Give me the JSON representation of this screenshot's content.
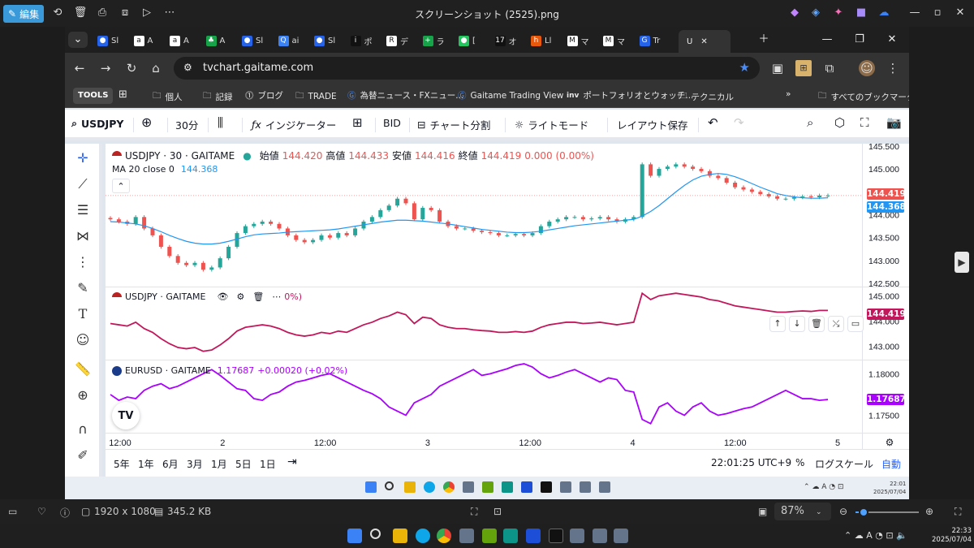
{
  "photos_app": {
    "edit_label": "編集",
    "title": "スクリーンショット (2525).png",
    "status": {
      "dimensions": "1920 x 1080",
      "filesize": "345.2 KB",
      "zoom": "87%"
    },
    "taskbar_clock": {
      "time": "22:33",
      "date": "2025/07/04"
    }
  },
  "browser": {
    "tabs": [
      {
        "label": "Sl",
        "icon": "globe-icon"
      },
      {
        "label": "A",
        "icon": "amazon-icon"
      },
      {
        "label": "A",
        "icon": "amazon-icon"
      },
      {
        "label": "A",
        "icon": "app-icon"
      },
      {
        "label": "Sl",
        "icon": "globe-icon"
      },
      {
        "label": "ai",
        "icon": "search-icon"
      },
      {
        "label": "Sl",
        "icon": "globe-icon"
      },
      {
        "label": "ポ",
        "icon": "investing-icon"
      },
      {
        "label": "デ",
        "icon": "r-icon"
      },
      {
        "label": "ラ",
        "icon": "plus-icon"
      },
      {
        "label": "[",
        "icon": "circle-icon"
      },
      {
        "label": "オ",
        "icon": "tradingview-icon"
      },
      {
        "label": "Ll",
        "icon": "h-icon"
      },
      {
        "label": "マ",
        "icon": "my-icon"
      },
      {
        "label": "マ",
        "icon": "my-icon"
      },
      {
        "label": "Tr",
        "icon": "gaitame-icon"
      }
    ],
    "active_tab_label": "U",
    "url": "tvchart.gaitame.com",
    "bookmarks": {
      "tools": "TOOLS",
      "items": [
        "個人",
        "記録",
        "ブログ",
        "TRADE",
        "為替ニュース・FXニュー...",
        "Gaitame Trading View",
        "ポートフォリオとウォッチ...",
        "テクニカル"
      ],
      "all_bookmarks": "すべてのブックマーク"
    }
  },
  "tv": {
    "symbol": "USDJPY",
    "interval": "30分",
    "indicators": "インジケーター",
    "bid": "BID",
    "split": "チャート分割",
    "light_mode": "ライトモード",
    "save_layout": "レイアウト保存",
    "main_legend": {
      "symbol": "USDJPY · 30 · GAITAME",
      "open_label": "始値",
      "open": "144.420",
      "high_label": "高値",
      "high": "144.433",
      "low_label": "安値",
      "low": "144.416",
      "close_label": "終値",
      "close": "144.419",
      "change": "0.000 (0.00%)"
    },
    "ma_legend": {
      "label": "MA 20 close 0",
      "value": "144.368"
    },
    "pane2_legend": {
      "symbol": "USDJPY · GAITAME",
      "tail": "0%)"
    },
    "pane3_legend": {
      "symbol": "EURUSD · GAITAME",
      "value": "1.17687",
      "change": "+0.00020 (+0.02%)"
    },
    "price_labels": {
      "main_last": "144.419",
      "main_ma": "144.368",
      "pane2_last": "144.419",
      "pane3_last": "1.17687"
    },
    "bottom_ranges": [
      "5年",
      "1年",
      "6月",
      "3月",
      "1月",
      "5日",
      "1日"
    ],
    "bottom_time": "22:01:25 UTC+9",
    "bottom_pct": "%",
    "bottom_log": "ログスケール",
    "bottom_auto": "自動",
    "inner_clock": {
      "time": "22:01",
      "date": "2025/07/04"
    },
    "colors": {
      "up": "#26a69a",
      "down": "#ef5350",
      "ma": "#2196f3",
      "pane2": "#c2185b",
      "pane3": "#aa00ff"
    }
  },
  "chart_data": [
    {
      "type": "candlestick",
      "title": "USDJPY · 30 · GAITAME",
      "x_ticks": [
        "12:00",
        "2",
        "12:00",
        "3",
        "12:00",
        "4",
        "12:00",
        "5"
      ],
      "y_ticks": [
        "145.500",
        "145.000",
        "144.500",
        "144.000",
        "143.500",
        "143.000",
        "142.500"
      ],
      "ylim": [
        142.45,
        145.55
      ],
      "closes": [
        143.9,
        143.85,
        143.8,
        143.95,
        143.7,
        143.55,
        143.3,
        143.1,
        142.95,
        142.9,
        142.95,
        142.8,
        142.85,
        143.05,
        143.3,
        143.6,
        143.75,
        143.8,
        143.85,
        143.8,
        143.7,
        143.55,
        143.45,
        143.4,
        143.45,
        143.55,
        143.5,
        143.6,
        143.55,
        143.7,
        143.85,
        143.95,
        144.1,
        144.2,
        144.35,
        144.25,
        143.9,
        144.15,
        144.1,
        143.85,
        143.75,
        143.7,
        143.7,
        143.65,
        143.62,
        143.6,
        143.55,
        143.55,
        143.58,
        143.55,
        143.6,
        143.75,
        143.85,
        143.9,
        143.95,
        143.95,
        143.9,
        143.92,
        143.95,
        143.9,
        143.85,
        143.9,
        143.95,
        145.1,
        144.85,
        145.0,
        145.05,
        145.1,
        145.05,
        145.0,
        144.95,
        144.85,
        144.8,
        144.7,
        144.6,
        144.55,
        144.5,
        144.45,
        144.4,
        144.35,
        144.35,
        144.38,
        144.4,
        144.38,
        144.42,
        144.42
      ],
      "ma20": [
        143.85,
        143.84,
        143.82,
        143.8,
        143.76,
        143.7,
        143.63,
        143.55,
        143.48,
        143.42,
        143.38,
        143.36,
        143.36,
        143.38,
        143.42,
        143.47,
        143.52,
        143.56,
        143.58,
        143.59,
        143.6,
        143.62,
        143.63,
        143.64,
        143.65,
        143.66,
        143.67,
        143.69,
        143.72,
        143.75,
        143.78,
        143.81,
        143.84,
        143.86,
        143.88,
        143.88,
        143.87,
        143.86,
        143.84,
        143.82,
        143.8,
        143.77,
        143.74,
        143.71,
        143.68,
        143.66,
        143.64,
        143.62,
        143.61,
        143.61,
        143.62,
        143.64,
        143.67,
        143.7,
        143.73,
        143.76,
        143.78,
        143.8,
        143.82,
        143.84,
        143.86,
        143.88,
        143.9,
        143.97,
        144.07,
        144.2,
        144.35,
        144.5,
        144.64,
        144.76,
        144.84,
        144.88,
        144.9,
        144.88,
        144.83,
        144.76,
        144.68,
        144.6,
        144.53,
        144.46,
        144.42,
        144.39,
        144.37,
        144.36,
        144.36,
        144.37
      ],
      "last": 144.419,
      "ma_last": 144.368
    },
    {
      "type": "line",
      "title": "USDJPY · GAITAME",
      "y_ticks": [
        "145.000",
        "144.000",
        "143.000"
      ],
      "ylim": [
        142.5,
        145.3
      ]
    },
    {
      "type": "line",
      "title": "EURUSD · GAITAME",
      "y_ticks": [
        "1.18000",
        "1.17500"
      ],
      "ylim": [
        1.173,
        1.1815
      ],
      "values": [
        1.1775,
        1.1768,
        1.1772,
        1.177,
        1.178,
        1.1785,
        1.1788,
        1.1782,
        1.1785,
        1.179,
        1.1795,
        1.18,
        1.1805,
        1.1798,
        1.179,
        1.1782,
        1.178,
        1.177,
        1.1768,
        1.1775,
        1.1778,
        1.1785,
        1.179,
        1.1792,
        1.1795,
        1.1798,
        1.18,
        1.1795,
        1.179,
        1.1785,
        1.178,
        1.1776,
        1.177,
        1.176,
        1.1755,
        1.175,
        1.1765,
        1.177,
        1.1775,
        1.1785,
        1.179,
        1.1795,
        1.18,
        1.1805,
        1.1798,
        1.18,
        1.1803,
        1.1806,
        1.181,
        1.1812,
        1.1808,
        1.18,
        1.1795,
        1.1798,
        1.1802,
        1.1805,
        1.18,
        1.1795,
        1.179,
        1.1795,
        1.1793,
        1.178,
        1.1778,
        1.1745,
        1.174,
        1.176,
        1.1765,
        1.1755,
        1.175,
        1.176,
        1.1765,
        1.1755,
        1.175,
        1.1752,
        1.1755,
        1.1758,
        1.176,
        1.1765,
        1.177,
        1.1775,
        1.178,
        1.1775,
        1.177,
        1.177,
        1.1768,
        1.1769
      ]
    }
  ]
}
